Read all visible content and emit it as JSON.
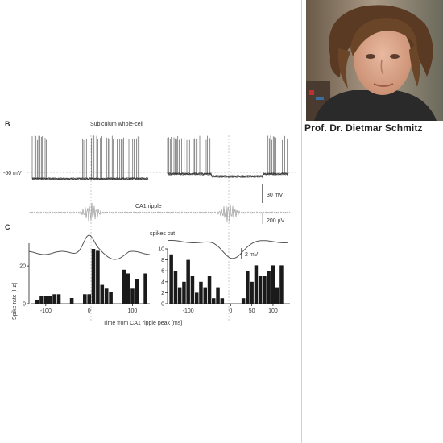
{
  "figure": {
    "panel_b_label": "B",
    "panel_c_label": "C",
    "whole_cell_title": "Subiculum whole-cell",
    "membrane_potential_label": "-60 mV",
    "scale_voltage": "30 mV",
    "ripple_title": "CA1 ripple",
    "scale_ripple": "200 µV",
    "spikes_cut_label": "spikes cut",
    "scale_small": "2 mV",
    "ylabel": "Spike rate [Hz]",
    "xlabel": "Time from CA1 ripple peak [ms]"
  },
  "caption": {
    "name": "Prof. Dr. Dietmar Schmitz"
  },
  "chart_data": [
    {
      "type": "bar",
      "title": "",
      "xlabel": "Time from CA1 ripple peak [ms]",
      "ylabel": "Spike rate [Hz]",
      "x": [
        -120,
        -110,
        -100,
        -90,
        -80,
        -70,
        -60,
        -50,
        -40,
        -30,
        -20,
        -10,
        0,
        10,
        20,
        30,
        40,
        50,
        60,
        70,
        80,
        90,
        100,
        110,
        120,
        130
      ],
      "values": [
        2,
        4,
        4,
        4,
        5,
        5,
        0,
        0,
        3,
        0,
        0,
        5,
        5,
        29,
        28,
        10,
        8,
        6,
        0,
        0,
        18,
        16,
        8,
        13,
        0,
        16
      ],
      "xticks": [
        -100,
        0,
        100
      ],
      "xtick_labels": [
        "-100",
        "0",
        "100"
      ],
      "yticks": [
        0,
        20
      ],
      "ytick_labels": [
        "0",
        "20"
      ],
      "ylim": [
        0,
        32
      ],
      "xlim": [
        -135,
        140
      ]
    },
    {
      "type": "bar",
      "title": "",
      "xlabel": "",
      "ylabel": "",
      "x": [
        -140,
        -130,
        -120,
        -110,
        -100,
        -90,
        -80,
        -70,
        -60,
        -50,
        -40,
        -30,
        -20,
        -10,
        0,
        10,
        20,
        30,
        40,
        50,
        60,
        70,
        80,
        90,
        100,
        110,
        120,
        130
      ],
      "values": [
        9,
        6,
        3,
        4,
        8,
        5,
        2,
        4,
        3,
        5,
        1,
        3,
        1,
        0,
        0,
        0,
        0,
        1,
        6,
        4,
        7,
        5,
        5,
        6,
        7,
        3,
        7,
        0
      ],
      "xticks": [
        -100,
        0,
        50,
        100
      ],
      "xtick_labels": [
        "-100",
        "0",
        "50",
        "100"
      ],
      "yticks": [
        0,
        2,
        4,
        6,
        8,
        10
      ],
      "ytick_labels": [
        "0",
        "2",
        "4",
        "6",
        "8",
        "10"
      ],
      "ylim": [
        0,
        10
      ],
      "xlim": [
        -145,
        140
      ]
    }
  ]
}
